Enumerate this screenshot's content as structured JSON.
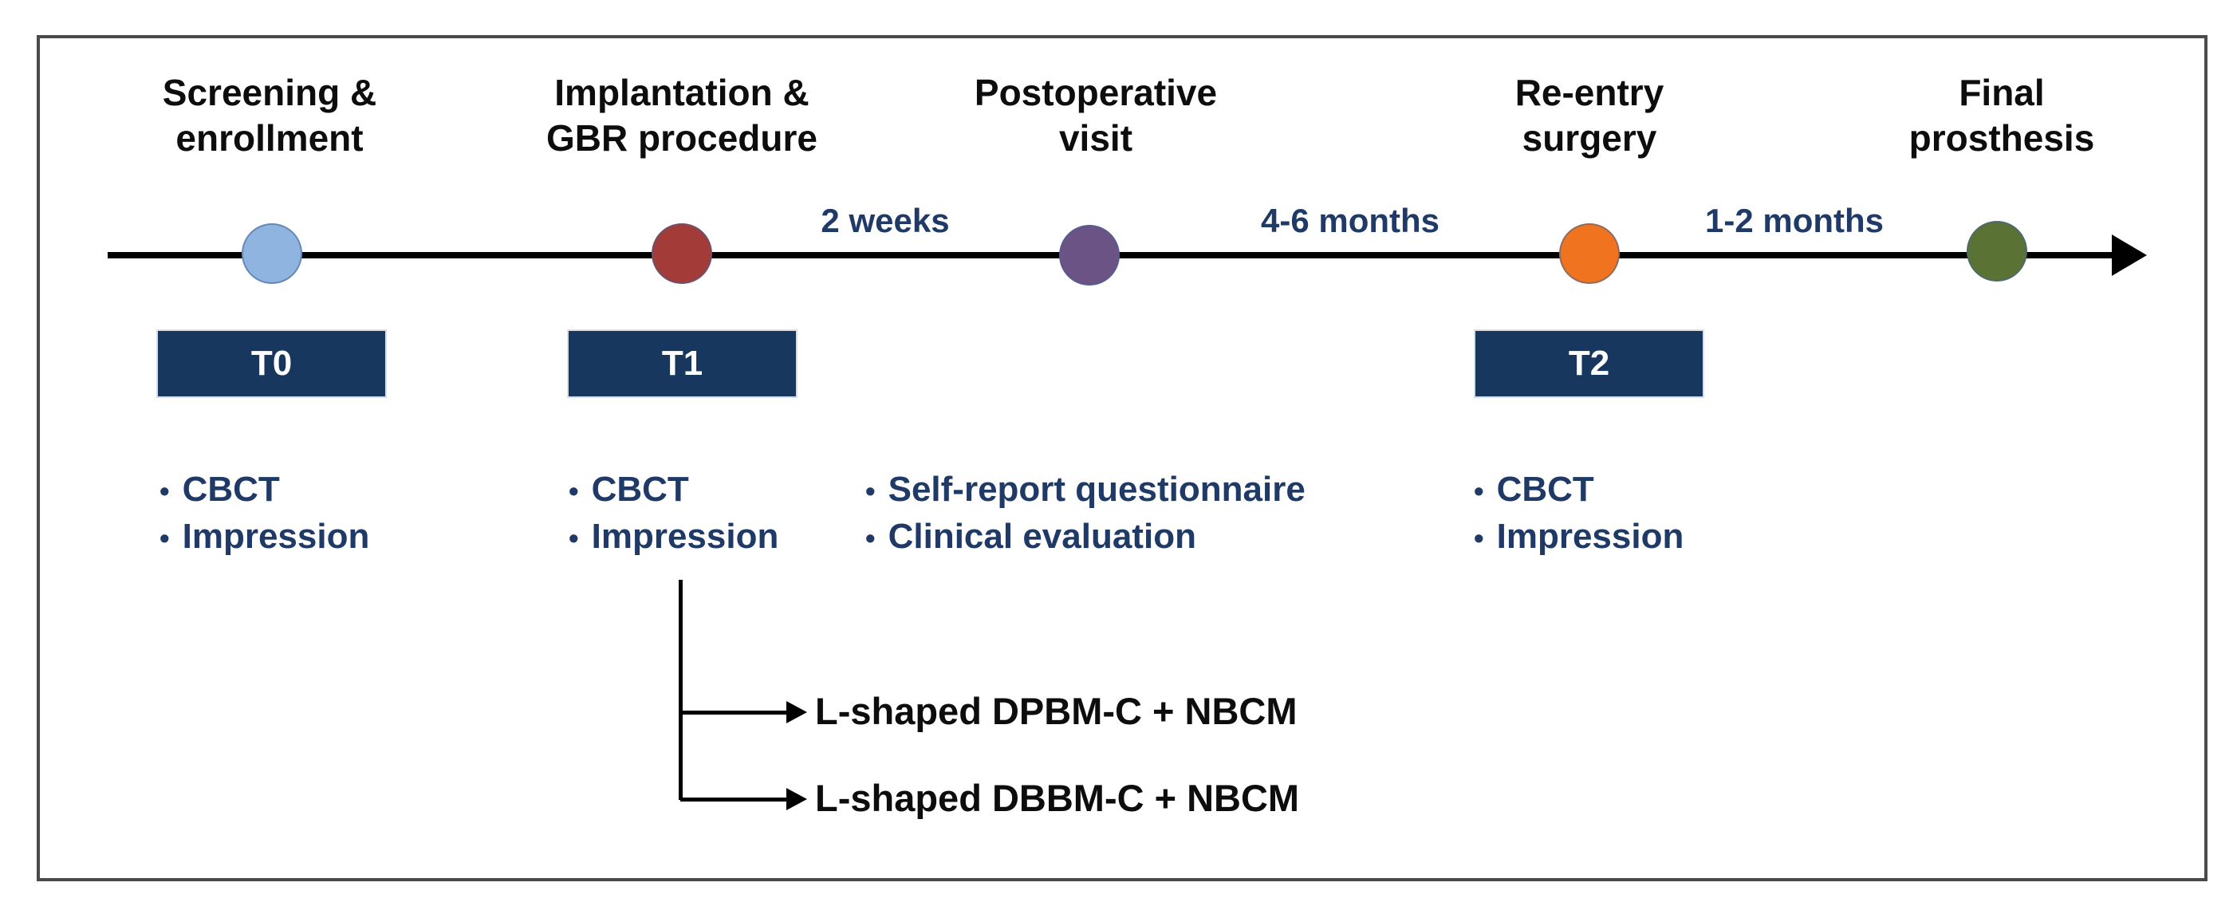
{
  "figure": {
    "type": "study-timeline",
    "description_visible_only": true
  },
  "ui": {
    "bullet_glyph": "•"
  },
  "colors": {
    "frame_border": "#4a4a4a",
    "timeline": "#000000",
    "timepoint_box_bg": "#17375e",
    "timepoint_box_text": "#ffffff",
    "navy_text": "#1f3a66",
    "heading_text": "#0d0d0d"
  },
  "stages": [
    {
      "title": "Screening &\nenrollment",
      "marker_color": "#8fb4e0",
      "timepoint": "T0",
      "bullets": [
        "CBCT",
        "Impression"
      ]
    },
    {
      "title": "Implantation &\nGBR procedure",
      "marker_color": "#a33b38",
      "timepoint": "T1",
      "bullets": [
        "CBCT",
        "Impression"
      ]
    },
    {
      "title": "Postoperative\nvisit",
      "marker_color": "#6b5385",
      "bullets": [
        "Self-report questionnaire",
        "Clinical evaluation"
      ]
    },
    {
      "title": "Re-entry\nsurgery",
      "marker_color": "#f0741f",
      "timepoint": "T2",
      "bullets": [
        "CBCT",
        "Impression"
      ]
    },
    {
      "title": "Final\nprosthesis",
      "marker_color": "#5a7233"
    }
  ],
  "intervals": [
    {
      "label": "2 weeks"
    },
    {
      "label": "4-6 months"
    },
    {
      "label": "1-2 months"
    }
  ],
  "branch": {
    "arms": [
      {
        "label": "L-shaped DPBM-C + NBCM"
      },
      {
        "label": "L-shaped DBBM-C + NBCM"
      }
    ]
  }
}
